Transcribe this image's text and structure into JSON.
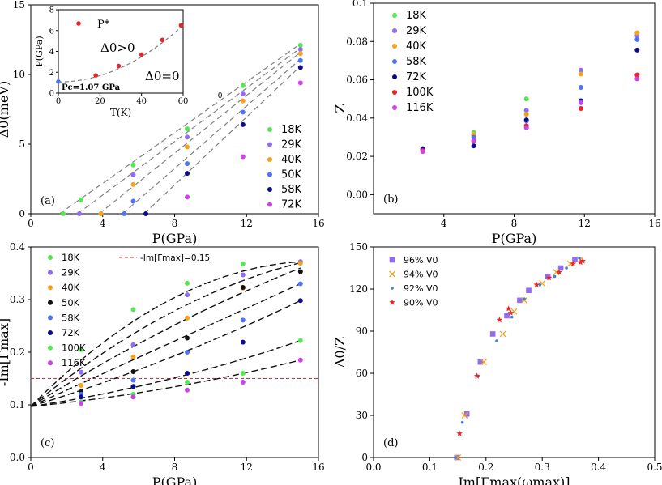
{
  "colors": {
    "green": "#55e655",
    "violet": "#8f6cf0",
    "orange": "#f5a21c",
    "blue": "#4f74f2",
    "navy": "#0d0d8c",
    "red": "#e6262a",
    "magenta": "#cc44e4",
    "black": "#111111",
    "cyan": "#3a7fd4",
    "dashed_grey": "#808080"
  },
  "chart_data": [
    {
      "id": "a",
      "type": "scatter",
      "panel_label": "(a)",
      "xlabel": "P(GPa)",
      "ylabel": "Δ0(meV)",
      "xlim": [
        0,
        16
      ],
      "ylim": [
        0,
        15
      ],
      "xticks": [
        0,
        4,
        8,
        12,
        16
      ],
      "yticks": [
        0,
        5,
        10,
        15
      ],
      "annotation": "0",
      "legend_position": "lower-right",
      "series": [
        {
          "name": "18K",
          "color": "green",
          "points": [
            [
              1.8,
              0
            ],
            [
              2.8,
              1.0
            ],
            [
              5.7,
              3.5
            ],
            [
              8.7,
              6.1
            ],
            [
              11.8,
              9.2
            ],
            [
              15.0,
              12.1
            ]
          ]
        },
        {
          "name": "29K",
          "color": "violet",
          "points": [
            [
              2.7,
              0
            ],
            [
              5.7,
              2.8
            ],
            [
              8.7,
              5.5
            ],
            [
              11.8,
              8.6
            ],
            [
              15.0,
              11.8
            ]
          ]
        },
        {
          "name": "40K",
          "color": "orange",
          "points": [
            [
              3.9,
              0
            ],
            [
              5.7,
              2.1
            ],
            [
              8.7,
              4.8
            ],
            [
              11.8,
              8.1
            ],
            [
              15.0,
              11.5
            ]
          ]
        },
        {
          "name": "50K",
          "color": "blue",
          "points": [
            [
              5.2,
              0
            ],
            [
              5.7,
              0.9
            ],
            [
              8.7,
              3.6
            ],
            [
              11.8,
              7.3
            ],
            [
              15.0,
              11.0
            ]
          ]
        },
        {
          "name": "58K",
          "color": "navy",
          "points": [
            [
              6.4,
              0
            ],
            [
              8.7,
              2.9
            ],
            [
              11.8,
              6.4
            ],
            [
              15.0,
              10.5
            ]
          ]
        },
        {
          "name": "72K",
          "color": "magenta",
          "points": [
            [
              8.7,
              1.2
            ],
            [
              11.8,
              4.1
            ],
            [
              15.0,
              9.4
            ]
          ]
        }
      ],
      "fit_lines": [
        [
          [
            1.6,
            0
          ],
          [
            15.0,
            12.2
          ]
        ],
        [
          [
            2.6,
            0
          ],
          [
            15.0,
            11.9
          ]
        ],
        [
          [
            3.8,
            0
          ],
          [
            15.0,
            11.6
          ]
        ],
        [
          [
            5.1,
            0
          ],
          [
            15.0,
            11.1
          ]
        ],
        [
          [
            6.3,
            0
          ],
          [
            15.0,
            10.6
          ]
        ]
      ],
      "inset": {
        "type": "scatter",
        "xlabel": "T(K)",
        "ylabel": "P(GPa)",
        "xlim": [
          0,
          6
        ],
        "ylim": [
          0,
          8
        ],
        "xticks": [
          0,
          20,
          40,
          60
        ],
        "yticks": [
          0,
          2,
          4,
          6,
          8
        ],
        "legend": "P*",
        "text_above": "Δ0>0",
        "text_below": "Δ0=0",
        "pc_label": "Pc=1.07 GPa",
        "points": [
          [
            0.0,
            1.1
          ],
          [
            1.8,
            1.7
          ],
          [
            2.9,
            2.6
          ],
          [
            4.0,
            3.7
          ],
          [
            5.0,
            5.1
          ],
          [
            5.9,
            6.5
          ]
        ],
        "curve_pc": 1.07
      }
    },
    {
      "id": "b",
      "type": "scatter",
      "panel_label": "(b)",
      "xlabel": "P(GPa)",
      "ylabel": "Z",
      "xlim": [
        0,
        16
      ],
      "ylim": [
        -0.01,
        0.1
      ],
      "xticks": [
        4,
        8,
        12,
        16
      ],
      "yticks": [
        0.0,
        0.02,
        0.04,
        0.06,
        0.08,
        0.1
      ],
      "ytick_labels": [
        "0.00",
        "0.02",
        "0.04",
        "0.06",
        "0.08",
        "0.1"
      ],
      "legend_position": "upper-left",
      "series": [
        {
          "name": "18K",
          "color": "green",
          "points": [
            [
              2.8,
              0.0235
            ],
            [
              5.7,
              0.0325
            ],
            [
              8.7,
              0.05
            ],
            [
              11.8,
              0.064
            ],
            [
              15.0,
              0.0845
            ]
          ]
        },
        {
          "name": "29K",
          "color": "violet",
          "points": [
            [
              2.8,
              0.023
            ],
            [
              5.7,
              0.031
            ],
            [
              8.7,
              0.044
            ],
            [
              11.8,
              0.065
            ],
            [
              15.0,
              0.083
            ]
          ]
        },
        {
          "name": "40K",
          "color": "orange",
          "points": [
            [
              2.8,
              0.0235
            ],
            [
              5.7,
              0.0315
            ],
            [
              8.7,
              0.042
            ],
            [
              11.8,
              0.063
            ],
            [
              15.0,
              0.0845
            ]
          ]
        },
        {
          "name": "58K",
          "color": "blue",
          "points": [
            [
              2.8,
              0.0235
            ],
            [
              5.7,
              0.03
            ],
            [
              8.7,
              0.0385
            ],
            [
              11.8,
              0.056
            ],
            [
              15.0,
              0.081
            ]
          ]
        },
        {
          "name": "72K",
          "color": "navy",
          "points": [
            [
              2.8,
              0.024
            ],
            [
              5.7,
              0.0255
            ],
            [
              8.7,
              0.039
            ],
            [
              11.8,
              0.049
            ],
            [
              15.0,
              0.0755
            ]
          ]
        },
        {
          "name": "100K",
          "color": "red",
          "points": [
            [
              2.8,
              0.023
            ],
            [
              5.7,
              0.028
            ],
            [
              8.7,
              0.036
            ],
            [
              11.8,
              0.045
            ],
            [
              15.0,
              0.0625
            ]
          ]
        },
        {
          "name": "116K",
          "color": "magenta",
          "points": [
            [
              2.8,
              0.0225
            ],
            [
              5.7,
              0.028
            ],
            [
              8.7,
              0.035
            ],
            [
              11.8,
              0.048
            ],
            [
              15.0,
              0.0605
            ]
          ]
        }
      ]
    },
    {
      "id": "c",
      "type": "scatter",
      "panel_label": "(c)",
      "xlabel": "P(GPa)",
      "ylabel": "-Im[Γmax]",
      "xlim": [
        0,
        16
      ],
      "ylim": [
        0,
        0.4
      ],
      "xticks": [
        0,
        4,
        8,
        12,
        16
      ],
      "yticks": [
        0.0,
        0.1,
        0.2,
        0.3,
        0.4
      ],
      "hline": {
        "y": 0.15,
        "label": "-Im[Γmax]=0.15",
        "color": "red"
      },
      "legend_position": "upper-left",
      "series": [
        {
          "name": "18K",
          "color": "green",
          "points": [
            [
              2.8,
              0.205
            ],
            [
              5.7,
              0.281
            ],
            [
              8.7,
              0.331
            ],
            [
              11.8,
              0.368
            ],
            [
              15.0,
              0.372
            ]
          ]
        },
        {
          "name": "29K",
          "color": "violet",
          "points": [
            [
              2.8,
              0.162
            ],
            [
              5.7,
              0.214
            ],
            [
              8.7,
              0.309
            ],
            [
              11.8,
              0.347
            ],
            [
              15.0,
              0.372
            ]
          ]
        },
        {
          "name": "40K",
          "color": "orange",
          "points": [
            [
              2.8,
              0.137
            ],
            [
              5.7,
              0.191
            ],
            [
              8.7,
              0.265
            ],
            [
              11.8,
              0.322
            ],
            [
              15.0,
              0.369
            ]
          ]
        },
        {
          "name": "50K",
          "color": "black",
          "points": [
            [
              2.8,
              0.125
            ],
            [
              5.7,
              0.163
            ],
            [
              8.7,
              0.227
            ],
            [
              11.8,
              0.323
            ],
            [
              15.0,
              0.353
            ]
          ]
        },
        {
          "name": "58K",
          "color": "blue",
          "points": [
            [
              2.8,
              0.12
            ],
            [
              5.7,
              0.147
            ],
            [
              8.7,
              0.2
            ],
            [
              11.8,
              0.261
            ],
            [
              15.0,
              0.33
            ]
          ]
        },
        {
          "name": "72K",
          "color": "navy",
          "points": [
            [
              2.8,
              0.115
            ],
            [
              5.7,
              0.135
            ],
            [
              8.7,
              0.16
            ],
            [
              11.8,
              0.219
            ],
            [
              15.0,
              0.298
            ]
          ]
        },
        {
          "name": "100K",
          "color": "green",
          "points": [
            [
              2.8,
              0.106
            ],
            [
              5.7,
              0.12
            ],
            [
              8.7,
              0.143
            ],
            [
              11.8,
              0.16
            ],
            [
              15.0,
              0.222
            ]
          ]
        },
        {
          "name": "116K",
          "color": "magenta",
          "points": [
            [
              2.8,
              0.103
            ],
            [
              5.7,
              0.115
            ],
            [
              8.7,
              0.128
            ],
            [
              11.8,
              0.143
            ],
            [
              15.0,
              0.185
            ]
          ]
        }
      ],
      "fit_curves": [
        {
          "y0": 0.097,
          "y15": 0.372,
          "shape": 1.0
        },
        {
          "y0": 0.097,
          "y15": 0.37,
          "shape": 0.6
        },
        {
          "y0": 0.097,
          "y15": 0.36,
          "shape": 0.25
        },
        {
          "y0": 0.097,
          "y15": 0.33,
          "shape": 0.0
        },
        {
          "y0": 0.097,
          "y15": 0.298,
          "shape": -0.25
        },
        {
          "y0": 0.097,
          "y15": 0.222,
          "shape": -0.45
        },
        {
          "y0": 0.097,
          "y15": 0.185,
          "shape": -0.5
        }
      ]
    },
    {
      "id": "d",
      "type": "scatter",
      "panel_label": "(d)",
      "xlabel": "Im[Γmax(ωmax)]",
      "ylabel": "Δ0/Z",
      "xlim": [
        0,
        0.5
      ],
      "ylim": [
        0,
        150
      ],
      "xticks": [
        0.0,
        0.1,
        0.2,
        0.3,
        0.4,
        0.5
      ],
      "yticks": [
        0,
        30,
        60,
        90,
        120,
        150
      ],
      "legend_position": "upper-left",
      "series": [
        {
          "name": "96% V0",
          "color": "violet",
          "marker": "square",
          "points": [
            [
              0.148,
              0
            ],
            [
              0.166,
              31
            ],
            [
              0.19,
              68
            ],
            [
              0.212,
              88
            ],
            [
              0.237,
              101
            ],
            [
              0.26,
              112
            ],
            [
              0.276,
              119
            ],
            [
              0.31,
              129
            ],
            [
              0.333,
              135
            ],
            [
              0.358,
              141
            ]
          ]
        },
        {
          "name": "94% V0",
          "color": "orange",
          "marker": "x",
          "points": [
            [
              0.15,
              0
            ],
            [
              0.162,
              30
            ],
            [
              0.196,
              68
            ],
            [
              0.23,
              88
            ],
            [
              0.25,
              104
            ],
            [
              0.268,
              112
            ],
            [
              0.3,
              124
            ],
            [
              0.325,
              132
            ],
            [
              0.35,
              138
            ],
            [
              0.368,
              141
            ]
          ]
        },
        {
          "name": "92% V0",
          "color": "cyan",
          "marker": "dot",
          "points": [
            [
              0.146,
              0
            ],
            [
              0.158,
              25
            ],
            [
              0.186,
              58
            ],
            [
              0.219,
              83
            ],
            [
              0.246,
              100
            ],
            [
              0.268,
              113
            ],
            [
              0.296,
              123
            ],
            [
              0.322,
              129
            ],
            [
              0.343,
              135
            ],
            [
              0.366,
              142
            ]
          ]
        },
        {
          "name": "90% V0",
          "color": "red",
          "marker": "star",
          "points": [
            [
              0.153,
              17
            ],
            [
              0.184,
              58
            ],
            [
              0.224,
              98
            ],
            [
              0.24,
              106
            ],
            [
              0.244,
              103
            ],
            [
              0.29,
              123
            ],
            [
              0.312,
              128
            ],
            [
              0.33,
              132
            ],
            [
              0.355,
              138
            ],
            [
              0.368,
              139
            ],
            [
              0.372,
              140
            ]
          ]
        }
      ]
    }
  ]
}
